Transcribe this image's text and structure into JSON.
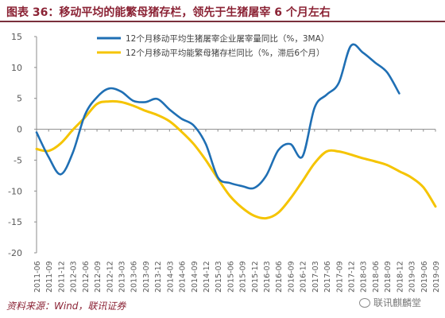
{
  "header": {
    "title": "图表 36：移动平均的能繁母猪存栏，领先于生猪屠宰 6 个月左右"
  },
  "footer": {
    "source": "资料来源：Wind，联讯证券",
    "watermark": "联讯麒麟堂"
  },
  "chart_data": {
    "type": "line",
    "title": "",
    "xlabel": "",
    "ylabel": "",
    "ylim": [
      -20,
      15
    ],
    "yticks": [
      15,
      10,
      5,
      0,
      -5,
      -10,
      -15,
      -20
    ],
    "grid": false,
    "legend_position": "top-right",
    "x": [
      "2011-06",
      "2011-09",
      "2011-12",
      "2012-03",
      "2012-06",
      "2012-09",
      "2012-12",
      "2013-03",
      "2013-06",
      "2013-09",
      "2013-12",
      "2014-03",
      "2014-06",
      "2014-09",
      "2014-12",
      "2015-03",
      "2015-06",
      "2015-09",
      "2015-12",
      "2016-03",
      "2016-06",
      "2016-09",
      "2016-12",
      "2017-03",
      "2017-06",
      "2017-09",
      "2017-12",
      "2018-03",
      "2018-06",
      "2018-09",
      "2018-12",
      "2019-03",
      "2019-06",
      "2019-09"
    ],
    "series": [
      {
        "name": "12个月移动平均生猪屠宰企业屠宰量同比（%，3MA）",
        "color": "#1f6fb4",
        "values": [
          -0.5,
          -4.5,
          -7.3,
          -3.8,
          2.3,
          5.2,
          6.6,
          6.1,
          4.6,
          4.4,
          4.9,
          3.2,
          1.7,
          0.6,
          -2.4,
          -7.8,
          -8.7,
          -9.2,
          -9.5,
          -7.5,
          -3.4,
          -2.4,
          -4.4,
          3.5,
          5.6,
          7.5,
          13.5,
          12.4,
          10.8,
          9.2,
          5.8,
          null,
          null,
          null
        ]
      },
      {
        "name": "12个月移动平均能繁母猪存栏同比（%，滞后6个月）",
        "color": "#f5c400",
        "values": [
          -3.2,
          -3.5,
          -2.3,
          -0.1,
          1.9,
          4.1,
          4.5,
          4.4,
          3.8,
          3.0,
          2.3,
          1.3,
          -0.4,
          -2.4,
          -5.0,
          -8.0,
          -10.8,
          -12.7,
          -14.0,
          -14.4,
          -13.5,
          -11.2,
          -8.4,
          -5.5,
          -3.6,
          -3.6,
          -4.1,
          -4.7,
          -5.2,
          -5.8,
          -6.8,
          -7.8,
          -9.4,
          -12.5
        ]
      }
    ]
  }
}
